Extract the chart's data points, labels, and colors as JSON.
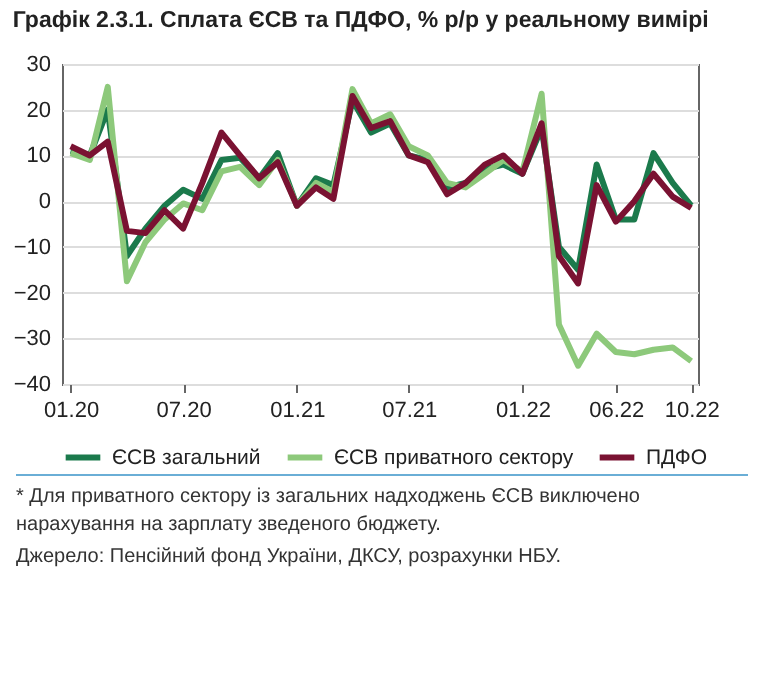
{
  "chart_data": {
    "type": "line",
    "title": "Графік 2.3.1. Сплата ЄСВ та ПДФО, % р/р у реальному вимірі",
    "x": [
      "2020-01",
      "2020-02",
      "2020-03",
      "2020-04",
      "2020-05",
      "2020-06",
      "2020-07",
      "2020-08",
      "2020-09",
      "2020-10",
      "2020-11",
      "2020-12",
      "2021-01",
      "2021-02",
      "2021-03",
      "2021-04",
      "2021-05",
      "2021-06",
      "2021-07",
      "2021-08",
      "2021-09",
      "2021-10",
      "2021-11",
      "2021-12",
      "2022-01",
      "2022-02",
      "2022-03",
      "2022-04",
      "2022-05",
      "2022-06",
      "2022-07",
      "2022-08",
      "2022-09",
      "2022-10"
    ],
    "series": [
      {
        "name": "ЄСВ загальний",
        "color": "#1b7a4c",
        "values": [
          11,
          10,
          20,
          -12,
          -6,
          -1,
          2.5,
          0.5,
          9,
          9.5,
          5,
          10.5,
          -1,
          5,
          3.5,
          22,
          15,
          17,
          10,
          9,
          3,
          4,
          7,
          8,
          6,
          16,
          -10,
          -15,
          8,
          -4,
          -4,
          10.5,
          4,
          -1
        ]
      },
      {
        "name": "ЄСВ приватного сектору",
        "color": "#8dc97b",
        "values": [
          10.5,
          9,
          25,
          -17.5,
          -9,
          -4,
          -0.5,
          -2,
          6.5,
          7.5,
          3.5,
          9,
          -1,
          4,
          2,
          24.5,
          17,
          19,
          12,
          10,
          4,
          3,
          6,
          9,
          6.5,
          23.5,
          -27,
          -36,
          -29,
          -33,
          -33.5,
          -32.5,
          -32,
          -35
        ]
      },
      {
        "name": "ПДФО",
        "color": "#7a1232",
        "values": [
          12,
          10,
          13,
          -6.5,
          -7,
          -2,
          -6,
          4,
          15,
          10,
          5,
          8.5,
          -1,
          3,
          0.5,
          23,
          16,
          17.5,
          10,
          8.5,
          1.5,
          4,
          8,
          10,
          6,
          17,
          -12,
          -18,
          3.5,
          -4.5,
          0,
          6,
          1,
          -1.5
        ]
      }
    ],
    "xlim": [
      "2019-12-18",
      "2022-10-12"
    ],
    "xticks": [
      {
        "value": "2020-01",
        "label": "01.20"
      },
      {
        "value": "2020-07",
        "label": "07.20"
      },
      {
        "value": "2021-01",
        "label": "01.21"
      },
      {
        "value": "2021-07",
        "label": "07.21"
      },
      {
        "value": "2022-01",
        "label": "01.22"
      },
      {
        "value": "2022-06",
        "label": "06.22"
      },
      {
        "value": "2022-10",
        "label": "10.22"
      }
    ],
    "ylim": [
      -40,
      30
    ],
    "yticks": [
      -40,
      -30,
      -20,
      -10,
      0,
      10,
      20,
      30
    ],
    "grid": "y",
    "legend": "bottom",
    "marker": "none",
    "line_style": "solid",
    "annotations": [
      "* Для приватного сектору із загальних надходжень ЄСВ виключено нарахування на зарплату зведеного бюджету.",
      "Джерело: Пенсійний фонд України, ДКСУ, розрахунки НБУ."
    ]
  }
}
